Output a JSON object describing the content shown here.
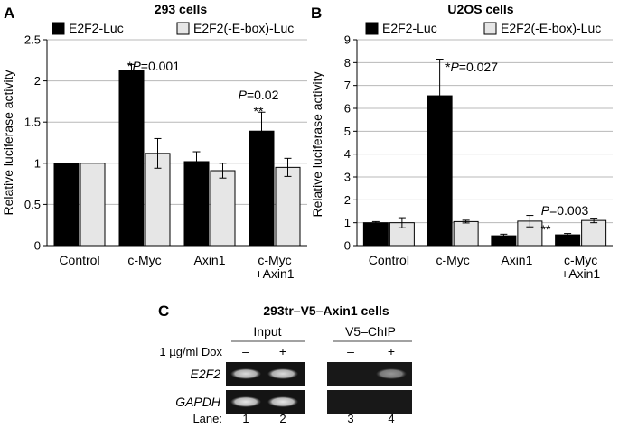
{
  "chart_data": [
    {
      "panel": "A",
      "type": "bar",
      "title": "293 cells",
      "ylabel": "Relative luciferase activity",
      "ylim": [
        0,
        2.5
      ],
      "yticks": [
        "0",
        "0.5",
        "1",
        "1.5",
        "2",
        "2.5"
      ],
      "grid": true,
      "legend_position": "top",
      "categories": [
        "Control",
        "c-Myc",
        "Axin1",
        "c-Myc\n+Axin1"
      ],
      "series": [
        {
          "name": "E2F2-Luc",
          "color": "#000000",
          "values": [
            1.0,
            2.13,
            1.02,
            1.39
          ],
          "errors": [
            0.0,
            0.07,
            0.12,
            0.23
          ]
        },
        {
          "name": "E2F2(-E-box)-Luc",
          "color": "#e6e6e6",
          "values": [
            1.0,
            1.12,
            0.91,
            0.95
          ],
          "errors": [
            0.0,
            0.18,
            0.09,
            0.11
          ]
        }
      ],
      "annotations": [
        {
          "text": "*P=0.001",
          "category": 1
        },
        {
          "text": "P=0.02",
          "category": 3
        },
        {
          "text": "**",
          "category": 3
        }
      ]
    },
    {
      "panel": "B",
      "type": "bar",
      "title": "U2OS cells",
      "ylabel": "Relative luciferase activity",
      "ylim": [
        0,
        9
      ],
      "yticks": [
        "0",
        "1",
        "2",
        "3",
        "4",
        "5",
        "6",
        "7",
        "8",
        "9"
      ],
      "grid": true,
      "legend_position": "top",
      "categories": [
        "Control",
        "c-Myc",
        "Axin1",
        "c-Myc\n+Axin1"
      ],
      "series": [
        {
          "name": "E2F2-Luc",
          "color": "#000000",
          "values": [
            1.0,
            6.55,
            0.43,
            0.47
          ],
          "errors": [
            0.05,
            1.6,
            0.07,
            0.06
          ]
        },
        {
          "name": "E2F2(-E-box)-Luc",
          "color": "#e6e6e6",
          "values": [
            1.0,
            1.05,
            1.07,
            1.1
          ],
          "errors": [
            0.22,
            0.06,
            0.25,
            0.1
          ]
        }
      ],
      "annotations": [
        {
          "text": "*P=0.027",
          "category": 1
        },
        {
          "text": "P=0.003",
          "category": 3
        },
        {
          "text": "**",
          "category": 3
        }
      ]
    }
  ],
  "panel_c": {
    "label": "C",
    "title": "293tr–V5–Axin1 cells",
    "group_input": "Input",
    "group_chip": "V5–ChIP",
    "dox_label": "1 µg/ml  Dox",
    "dox_states": [
      "–",
      "+",
      "–",
      "+"
    ],
    "rows": [
      {
        "label": "E2F2",
        "band_intensity": [
          0.85,
          0.85,
          0.0,
          0.55
        ]
      },
      {
        "label": "GAPDH",
        "band_intensity": [
          0.9,
          0.9,
          0.0,
          0.0
        ]
      }
    ],
    "lane_label": "Lane:",
    "lanes": [
      "1",
      "2",
      "3",
      "4"
    ]
  }
}
